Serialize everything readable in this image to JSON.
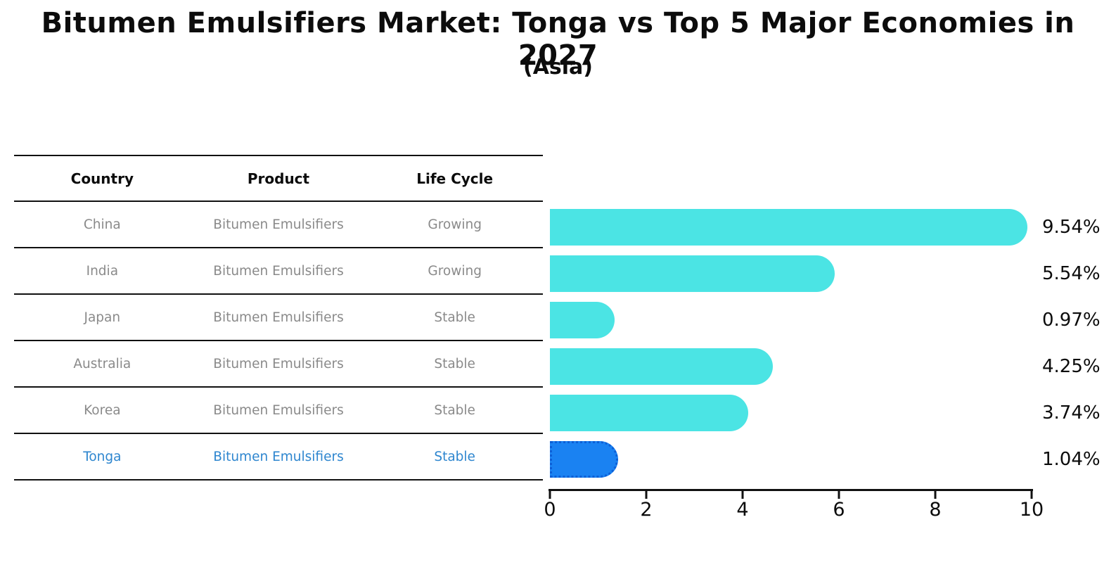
{
  "title": "Bitumen Emulsifiers Market: Tonga vs Top 5 Major Economies in 2027",
  "subtitle": "(Asia)",
  "table": {
    "headers": [
      "Country",
      "Product",
      "Life Cycle"
    ],
    "rows": [
      {
        "country": "China",
        "product": "Bitumen Emulsifiers",
        "life_cycle": "Growing",
        "highlight": false
      },
      {
        "country": "India",
        "product": "Bitumen Emulsifiers",
        "life_cycle": "Growing",
        "highlight": false
      },
      {
        "country": "Japan",
        "product": "Bitumen Emulsifiers",
        "life_cycle": "Stable",
        "highlight": false
      },
      {
        "country": "Australia",
        "product": "Bitumen Emulsifiers",
        "life_cycle": "Stable",
        "highlight": false
      },
      {
        "country": "Korea",
        "product": "Bitumen Emulsifiers",
        "life_cycle": "Stable",
        "highlight": false
      },
      {
        "country": "Tonga",
        "product": "Bitumen Emulsifiers",
        "life_cycle": "Stable",
        "highlight": true
      }
    ]
  },
  "chart_data": {
    "type": "bar",
    "orientation": "horizontal",
    "title": "Bitumen Emulsifiers Market: Tonga vs Top 5 Major Economies in 2027 (Asia)",
    "categories": [
      "China",
      "India",
      "Japan",
      "Australia",
      "Korea",
      "Tonga"
    ],
    "values": [
      9.54,
      5.54,
      0.97,
      4.25,
      3.74,
      1.04
    ],
    "value_labels": [
      "9.54%",
      "5.54%",
      "0.97%",
      "4.25%",
      "3.74%",
      "1.04%"
    ],
    "xlim": [
      0,
      10
    ],
    "x_ticks": [
      "0",
      "2",
      "4",
      "6",
      "8",
      "10"
    ],
    "grid": "off",
    "legend": "none",
    "bar_color": "#4be4e4",
    "highlight_index": 5,
    "highlight_color": "#1a82f2",
    "highlight_border_color": "#0d5fd6",
    "highlight_text_color": "#2e86cf"
  }
}
